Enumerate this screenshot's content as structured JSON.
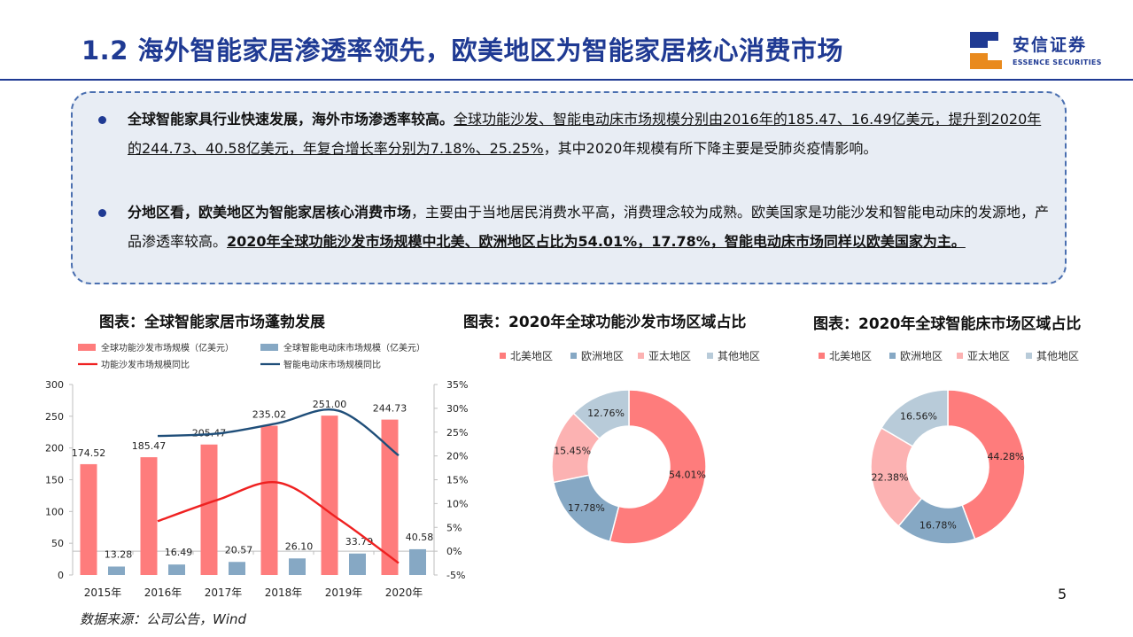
{
  "header": {
    "title": "1.2  海外智能家居渗透率领先，欧美地区为智能家居核心消费市场",
    "logo_cn": "安信证券",
    "logo_en": "ESSENCE SECURITIES"
  },
  "bullets": [
    {
      "lead": "全球智能家具行业快速发展，海外市场渗透率较高。",
      "underlined": "全球功能沙发、智能电动床市场规模分别由2016年的185.47、16.49亿美元，提升到2020年的244.73、40.58亿美元，年复合增长率分别为7.18%、25.25%",
      "tail": "，其中2020年规模有所下降主要是受肺炎疫情影响。"
    },
    {
      "lead": "分地区看，欧美地区为智能家居核心消费市场",
      "plain": "，主要由于当地居民消费水平高，消费理念较为成熟。欧美国家是功能沙发和智能电动床的发源地，产品渗透率较高。",
      "bold_underlined": "2020年全球功能沙发市场规模中北美、欧洲地区占比为54.01%，17.78%，智能电动床市场同样以欧美国家为主。"
    }
  ],
  "colors": {
    "brand": "#1f3a93",
    "sofa_bar": "#fe7c7c",
    "bed_bar": "#86a8c4",
    "sofa_line": "#ef2121",
    "bed_line": "#1f4e79",
    "na": "#fe7c7c",
    "eu": "#86a8c4",
    "ap": "#fcb2b2",
    "other": "#b8cbd9"
  },
  "charts_titles": {
    "left": "图表：全球智能家居市场蓬勃发展",
    "middle": "图表：2020年全球功能沙发市场区域占比",
    "right": "图表：2020年全球智能床市场区域占比"
  },
  "chart_data": [
    {
      "type": "bar",
      "title": "图表：全球智能家居市场蓬勃发展",
      "categories": [
        "2015年",
        "2016年",
        "2017年",
        "2018年",
        "2019年",
        "2020年"
      ],
      "series": [
        {
          "name": "全球功能沙发市场规模（亿美元）",
          "kind": "bar",
          "axis": "left",
          "values": [
            174.52,
            185.47,
            205.47,
            235.02,
            251.0,
            244.73
          ],
          "labels": [
            "174.52",
            "185.47",
            "205.47",
            "235.02",
            "251.00",
            "244.73"
          ]
        },
        {
          "name": "全球智能电动床市场规模（亿美元）",
          "kind": "bar",
          "axis": "left",
          "values": [
            13.28,
            16.49,
            20.57,
            26.1,
            33.79,
            40.58
          ],
          "labels": [
            "13.28",
            "16.49",
            "20.57",
            "26.10",
            "33.79",
            "40.58"
          ]
        },
        {
          "name": "功能沙发市场规模同比",
          "kind": "line",
          "axis": "right",
          "values": [
            null,
            6.3,
            10.8,
            14.4,
            6.8,
            -2.5
          ]
        },
        {
          "name": "智能电动床市场规模同比",
          "kind": "line",
          "axis": "right",
          "values": [
            null,
            24.2,
            24.7,
            26.9,
            29.5,
            20.1
          ]
        }
      ],
      "y_left": {
        "min": 0,
        "max": 300,
        "ticks": [
          "0",
          "50",
          "100",
          "150",
          "200",
          "250",
          "300"
        ]
      },
      "y_right": {
        "min": -5,
        "max": 35,
        "ticks": [
          "-5%",
          "0%",
          "5%",
          "10%",
          "15%",
          "20%",
          "25%",
          "30%",
          "35%"
        ]
      },
      "legend_position": "top",
      "grid": false
    },
    {
      "type": "pie",
      "title": "图表：2020年全球功能沙发市场区域占比",
      "legend": [
        "北美地区",
        "欧洲地区",
        "亚太地区",
        "其他地区"
      ],
      "values": [
        54.01,
        17.78,
        15.45,
        12.76
      ],
      "labels": [
        "54.01%",
        "17.78%",
        "15.45%",
        "12.76%"
      ],
      "donut": true
    },
    {
      "type": "pie",
      "title": "图表：2020年全球智能床市场区域占比",
      "legend": [
        "北美地区",
        "欧洲地区",
        "亚太地区",
        "其他地区"
      ],
      "values": [
        44.28,
        16.78,
        22.38,
        16.56
      ],
      "labels": [
        "44.28%",
        "16.78%",
        "22.38%",
        "16.56%"
      ],
      "donut": true
    }
  ],
  "footer": {
    "source": "数据来源：公司公告，Wind",
    "page_number": "5"
  }
}
